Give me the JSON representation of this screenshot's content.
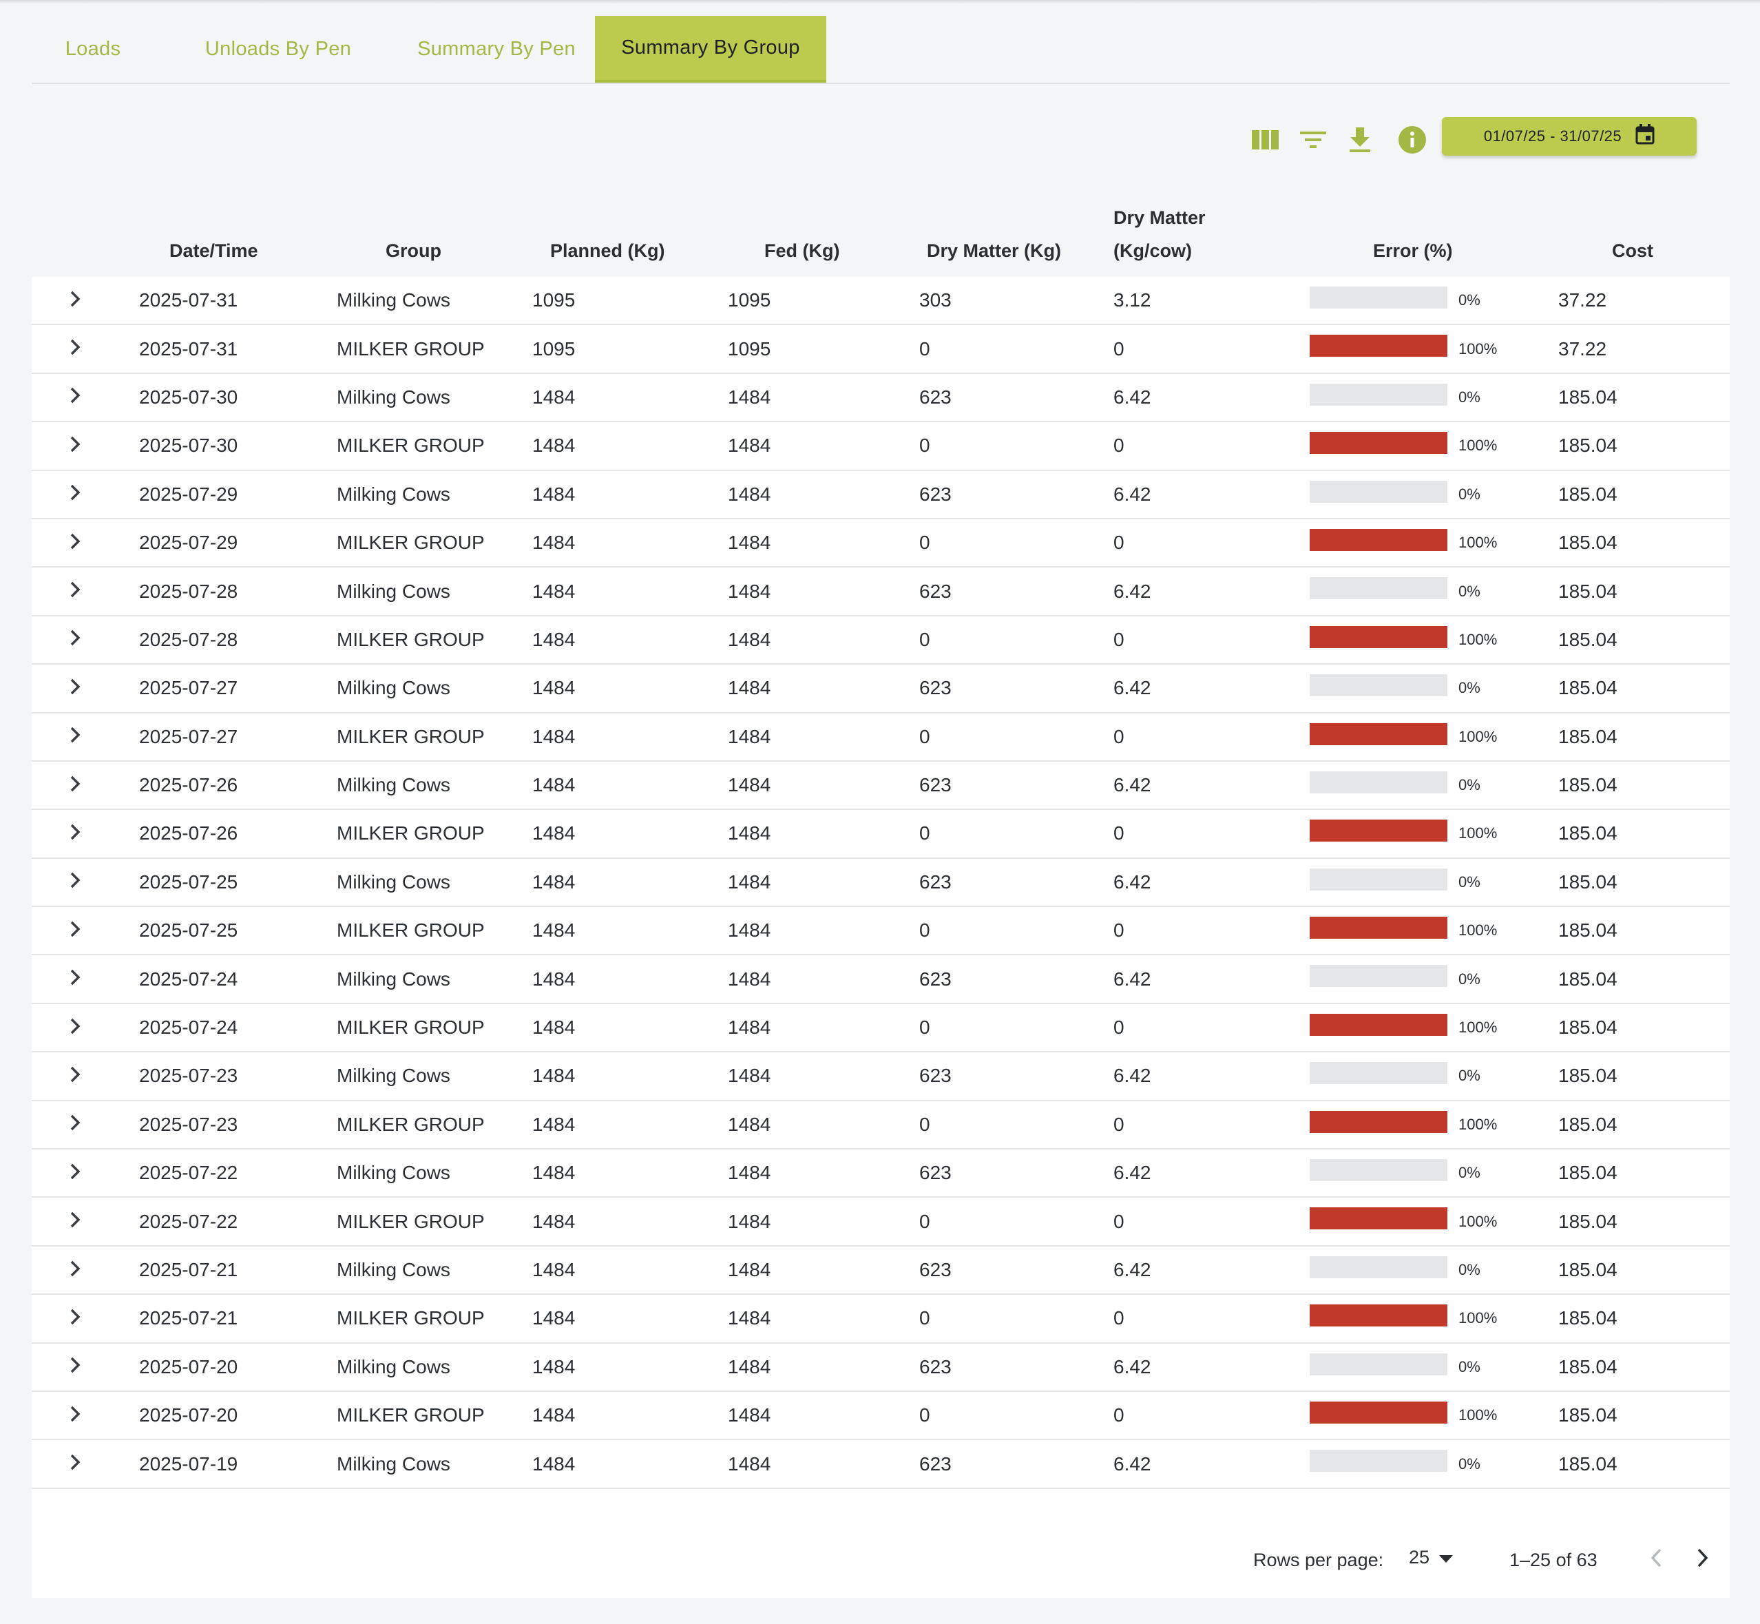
{
  "tabs": [
    {
      "label": "Loads",
      "active": false
    },
    {
      "label": "Unloads By Pen",
      "active": false
    },
    {
      "label": "Summary By Pen",
      "active": false
    },
    {
      "label": "Summary By Group",
      "active": true
    }
  ],
  "toolbar": {
    "icons": [
      "columns-icon",
      "filter-icon",
      "download-icon",
      "info-icon"
    ],
    "date_range": "01/07/25 - 31/07/25",
    "accent": "#bccb4e",
    "icon_color": "#a1b944"
  },
  "table": {
    "headers": {
      "date": "Date/Time",
      "group": "Group",
      "planned": "Planned (Kg)",
      "fed": "Fed (Kg)",
      "dm": "Dry Matter (Kg)",
      "dmcow_1": "Dry Matter",
      "dmcow_2": "(Kg/cow)",
      "error": "Error (%)",
      "cost": "Cost"
    },
    "error_color": "#c0392b",
    "rows": [
      {
        "date": "2025-07-31",
        "group": "Milking Cows",
        "planned": "1095",
        "fed": "1095",
        "dm": "303",
        "dmcow": "3.12",
        "error": 0,
        "error_label": "0%",
        "cost": "37.22"
      },
      {
        "date": "2025-07-31",
        "group": "MILKER GROUP",
        "planned": "1095",
        "fed": "1095",
        "dm": "0",
        "dmcow": "0",
        "error": 100,
        "error_label": "100%",
        "cost": "37.22"
      },
      {
        "date": "2025-07-30",
        "group": "Milking Cows",
        "planned": "1484",
        "fed": "1484",
        "dm": "623",
        "dmcow": "6.42",
        "error": 0,
        "error_label": "0%",
        "cost": "185.04"
      },
      {
        "date": "2025-07-30",
        "group": "MILKER GROUP",
        "planned": "1484",
        "fed": "1484",
        "dm": "0",
        "dmcow": "0",
        "error": 100,
        "error_label": "100%",
        "cost": "185.04"
      },
      {
        "date": "2025-07-29",
        "group": "Milking Cows",
        "planned": "1484",
        "fed": "1484",
        "dm": "623",
        "dmcow": "6.42",
        "error": 0,
        "error_label": "0%",
        "cost": "185.04"
      },
      {
        "date": "2025-07-29",
        "group": "MILKER GROUP",
        "planned": "1484",
        "fed": "1484",
        "dm": "0",
        "dmcow": "0",
        "error": 100,
        "error_label": "100%",
        "cost": "185.04"
      },
      {
        "date": "2025-07-28",
        "group": "Milking Cows",
        "planned": "1484",
        "fed": "1484",
        "dm": "623",
        "dmcow": "6.42",
        "error": 0,
        "error_label": "0%",
        "cost": "185.04"
      },
      {
        "date": "2025-07-28",
        "group": "MILKER GROUP",
        "planned": "1484",
        "fed": "1484",
        "dm": "0",
        "dmcow": "0",
        "error": 100,
        "error_label": "100%",
        "cost": "185.04"
      },
      {
        "date": "2025-07-27",
        "group": "Milking Cows",
        "planned": "1484",
        "fed": "1484",
        "dm": "623",
        "dmcow": "6.42",
        "error": 0,
        "error_label": "0%",
        "cost": "185.04"
      },
      {
        "date": "2025-07-27",
        "group": "MILKER GROUP",
        "planned": "1484",
        "fed": "1484",
        "dm": "0",
        "dmcow": "0",
        "error": 100,
        "error_label": "100%",
        "cost": "185.04"
      },
      {
        "date": "2025-07-26",
        "group": "Milking Cows",
        "planned": "1484",
        "fed": "1484",
        "dm": "623",
        "dmcow": "6.42",
        "error": 0,
        "error_label": "0%",
        "cost": "185.04"
      },
      {
        "date": "2025-07-26",
        "group": "MILKER GROUP",
        "planned": "1484",
        "fed": "1484",
        "dm": "0",
        "dmcow": "0",
        "error": 100,
        "error_label": "100%",
        "cost": "185.04"
      },
      {
        "date": "2025-07-25",
        "group": "Milking Cows",
        "planned": "1484",
        "fed": "1484",
        "dm": "623",
        "dmcow": "6.42",
        "error": 0,
        "error_label": "0%",
        "cost": "185.04"
      },
      {
        "date": "2025-07-25",
        "group": "MILKER GROUP",
        "planned": "1484",
        "fed": "1484",
        "dm": "0",
        "dmcow": "0",
        "error": 100,
        "error_label": "100%",
        "cost": "185.04"
      },
      {
        "date": "2025-07-24",
        "group": "Milking Cows",
        "planned": "1484",
        "fed": "1484",
        "dm": "623",
        "dmcow": "6.42",
        "error": 0,
        "error_label": "0%",
        "cost": "185.04"
      },
      {
        "date": "2025-07-24",
        "group": "MILKER GROUP",
        "planned": "1484",
        "fed": "1484",
        "dm": "0",
        "dmcow": "0",
        "error": 100,
        "error_label": "100%",
        "cost": "185.04"
      },
      {
        "date": "2025-07-23",
        "group": "Milking Cows",
        "planned": "1484",
        "fed": "1484",
        "dm": "623",
        "dmcow": "6.42",
        "error": 0,
        "error_label": "0%",
        "cost": "185.04"
      },
      {
        "date": "2025-07-23",
        "group": "MILKER GROUP",
        "planned": "1484",
        "fed": "1484",
        "dm": "0",
        "dmcow": "0",
        "error": 100,
        "error_label": "100%",
        "cost": "185.04"
      },
      {
        "date": "2025-07-22",
        "group": "Milking Cows",
        "planned": "1484",
        "fed": "1484",
        "dm": "623",
        "dmcow": "6.42",
        "error": 0,
        "error_label": "0%",
        "cost": "185.04"
      },
      {
        "date": "2025-07-22",
        "group": "MILKER GROUP",
        "planned": "1484",
        "fed": "1484",
        "dm": "0",
        "dmcow": "0",
        "error": 100,
        "error_label": "100%",
        "cost": "185.04"
      },
      {
        "date": "2025-07-21",
        "group": "Milking Cows",
        "planned": "1484",
        "fed": "1484",
        "dm": "623",
        "dmcow": "6.42",
        "error": 0,
        "error_label": "0%",
        "cost": "185.04"
      },
      {
        "date": "2025-07-21",
        "group": "MILKER GROUP",
        "planned": "1484",
        "fed": "1484",
        "dm": "0",
        "dmcow": "0",
        "error": 100,
        "error_label": "100%",
        "cost": "185.04"
      },
      {
        "date": "2025-07-20",
        "group": "Milking Cows",
        "planned": "1484",
        "fed": "1484",
        "dm": "623",
        "dmcow": "6.42",
        "error": 0,
        "error_label": "0%",
        "cost": "185.04"
      },
      {
        "date": "2025-07-20",
        "group": "MILKER GROUP",
        "planned": "1484",
        "fed": "1484",
        "dm": "0",
        "dmcow": "0",
        "error": 100,
        "error_label": "100%",
        "cost": "185.04"
      },
      {
        "date": "2025-07-19",
        "group": "Milking Cows",
        "planned": "1484",
        "fed": "1484",
        "dm": "623",
        "dmcow": "6.42",
        "error": 0,
        "error_label": "0%",
        "cost": "185.04"
      }
    ]
  },
  "pagination": {
    "rows_per_page_label": "Rows per page:",
    "rows_per_page": "25",
    "range": "1–25 of 63"
  }
}
